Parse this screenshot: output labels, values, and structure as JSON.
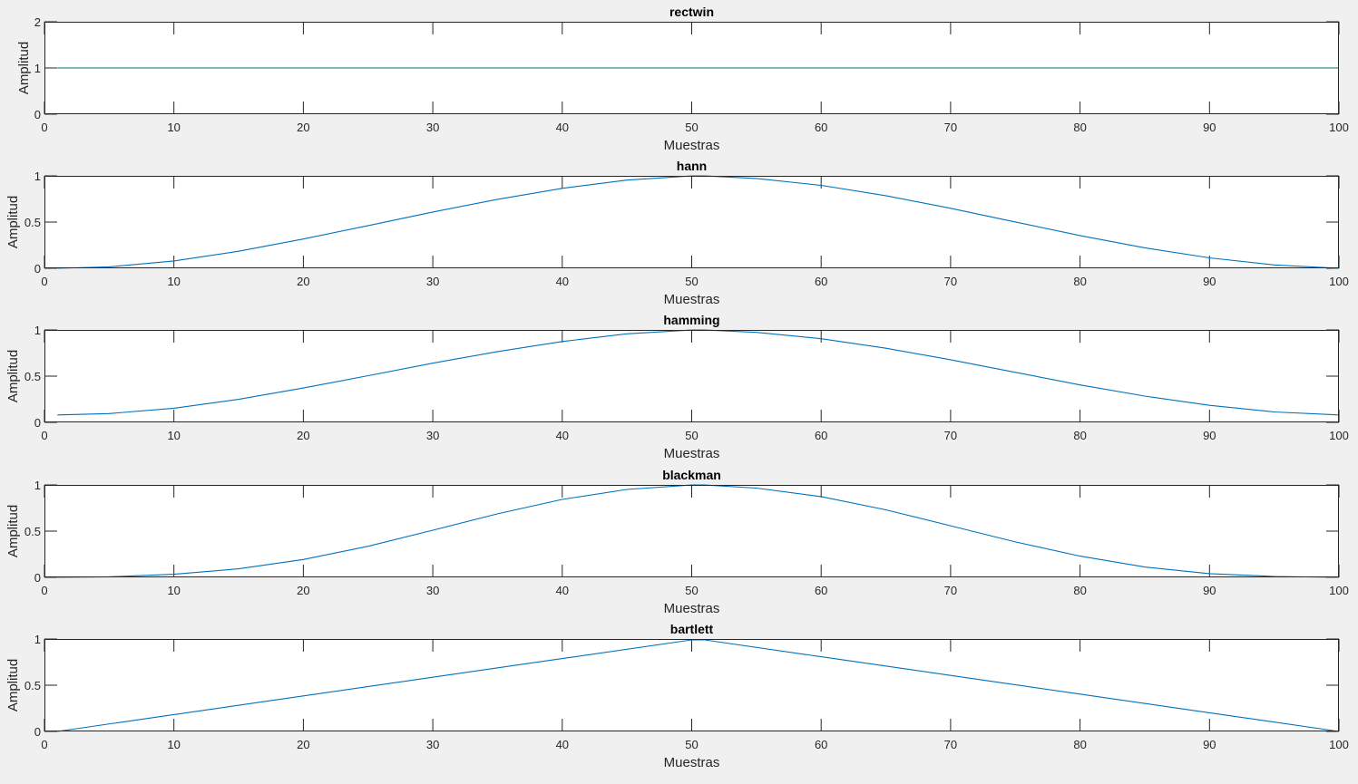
{
  "chart_data": [
    {
      "type": "line",
      "title": "rectwin",
      "xlabel": "Muestras",
      "ylabel": "Amplitud",
      "xlim": [
        0,
        100
      ],
      "ylim": [
        0,
        2
      ],
      "xticks": [
        "0",
        "10",
        "20",
        "30",
        "40",
        "50",
        "60",
        "70",
        "80",
        "90",
        "100"
      ],
      "yticks": [
        "0",
        "1",
        "2"
      ],
      "ytick_values": [
        0,
        1,
        2
      ],
      "color": "#0072bd",
      "line_color": "#00727a",
      "window": "rectwin",
      "n": 100,
      "x": [
        1,
        5,
        10,
        15,
        20,
        25,
        30,
        35,
        40,
        45,
        50,
        55,
        60,
        65,
        70,
        75,
        80,
        85,
        90,
        95,
        100
      ],
      "y": [
        1,
        1,
        1,
        1,
        1,
        1,
        1,
        1,
        1,
        1,
        1,
        1,
        1,
        1,
        1,
        1,
        1,
        1,
        1,
        1,
        1
      ]
    },
    {
      "type": "line",
      "title": "hann",
      "xlabel": "Muestras",
      "ylabel": "Amplitud",
      "xlim": [
        0,
        100
      ],
      "ylim": [
        0,
        1
      ],
      "xticks": [
        "0",
        "10",
        "20",
        "30",
        "40",
        "50",
        "60",
        "70",
        "80",
        "90",
        "100"
      ],
      "yticks": [
        "0",
        "0.5",
        "1"
      ],
      "ytick_values": [
        0,
        0.5,
        1
      ],
      "color": "#0072bd",
      "window": "hann",
      "n": 100,
      "x": [
        1,
        5,
        10,
        15,
        20,
        25,
        30,
        35,
        40,
        45,
        50,
        51,
        55,
        60,
        65,
        70,
        75,
        80,
        85,
        90,
        95,
        100
      ],
      "y": [
        0,
        0.016,
        0.079,
        0.184,
        0.317,
        0.462,
        0.609,
        0.746,
        0.865,
        0.954,
        0.999,
        0.999,
        0.972,
        0.897,
        0.785,
        0.649,
        0.501,
        0.354,
        0.222,
        0.113,
        0.036,
        0
      ]
    },
    {
      "type": "line",
      "title": "hamming",
      "xlabel": "Muestras",
      "ylabel": "Amplitud",
      "xlim": [
        0,
        100
      ],
      "ylim": [
        0,
        1
      ],
      "xticks": [
        "0",
        "10",
        "20",
        "30",
        "40",
        "50",
        "60",
        "70",
        "80",
        "90",
        "100"
      ],
      "yticks": [
        "0",
        "0.5",
        "1"
      ],
      "ytick_values": [
        0,
        0.5,
        1
      ],
      "color": "#0072bd",
      "window": "hamming",
      "n": 100,
      "x": [
        1,
        5,
        10,
        15,
        20,
        25,
        30,
        35,
        40,
        45,
        50,
        51,
        55,
        60,
        65,
        70,
        75,
        80,
        85,
        90,
        95,
        100
      ],
      "y": [
        0.08,
        0.095,
        0.153,
        0.249,
        0.372,
        0.505,
        0.64,
        0.766,
        0.875,
        0.958,
        0.999,
        0.999,
        0.974,
        0.905,
        0.802,
        0.677,
        0.541,
        0.405,
        0.284,
        0.184,
        0.113,
        0.08
      ]
    },
    {
      "type": "line",
      "title": "blackman",
      "xlabel": "Muestras",
      "ylabel": "Amplitud",
      "xlim": [
        0,
        100
      ],
      "ylim": [
        0,
        1
      ],
      "xticks": [
        "0",
        "10",
        "20",
        "30",
        "40",
        "50",
        "60",
        "70",
        "80",
        "90",
        "100"
      ],
      "yticks": [
        "0",
        "0.5",
        "1"
      ],
      "ytick_values": [
        0,
        0.5,
        1
      ],
      "color": "#0072bd",
      "window": "blackman",
      "n": 100,
      "x": [
        1,
        5,
        10,
        15,
        20,
        25,
        30,
        35,
        40,
        45,
        50,
        51,
        55,
        60,
        65,
        70,
        75,
        80,
        85,
        90,
        95,
        100
      ],
      "y": [
        0,
        0.006,
        0.033,
        0.092,
        0.193,
        0.336,
        0.51,
        0.687,
        0.843,
        0.951,
        0.999,
        0.999,
        0.966,
        0.874,
        0.73,
        0.558,
        0.383,
        0.229,
        0.112,
        0.04,
        0.01,
        0
      ]
    },
    {
      "type": "line",
      "title": "bartlett",
      "xlabel": "Muestras",
      "ylabel": "Amplitud",
      "xlim": [
        0,
        100
      ],
      "ylim": [
        0,
        1
      ],
      "xticks": [
        "0",
        "10",
        "20",
        "30",
        "40",
        "50",
        "60",
        "70",
        "80",
        "90",
        "100"
      ],
      "yticks": [
        "0",
        "0.5",
        "1"
      ],
      "ytick_values": [
        0,
        0.5,
        1
      ],
      "color": "#0072bd",
      "window": "bartlett",
      "n": 100,
      "x": [
        1,
        10,
        20,
        30,
        40,
        50,
        51,
        60,
        70,
        80,
        90,
        100
      ],
      "y": [
        0,
        0.182,
        0.384,
        0.586,
        0.788,
        0.99,
        0.99,
        0.808,
        0.606,
        0.404,
        0.202,
        0
      ]
    }
  ]
}
